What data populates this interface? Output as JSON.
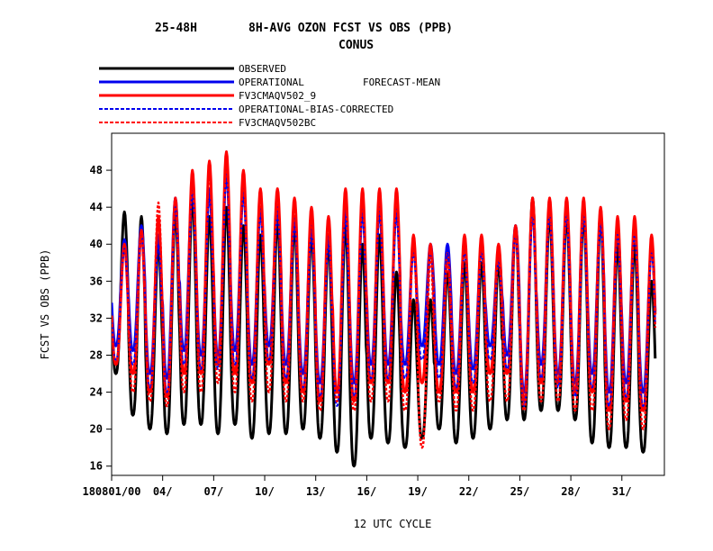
{
  "title": {
    "line1_left": "25-48H",
    "line1_right": "8H-AVG OZON FCST VS OBS (PPB)",
    "line2": "CONUS"
  },
  "legend": {
    "observed": "OBSERVED",
    "operational": "OPERATIONAL",
    "forecast_mean": "FORECAST-MEAN",
    "fv3": "FV3CMAQV502_9",
    "op_bc": "OPERATIONAL-BIAS-CORRECTED",
    "fv3_bc": "FV3CMAQV502BC"
  },
  "chart_data": {
    "type": "line",
    "xlabel": "12 UTC CYCLE",
    "ylabel": "FCST VS OBS (PPB)",
    "ylim": [
      15,
      52
    ],
    "xlim": [
      0,
      32.5
    ],
    "yticks": [
      16,
      20,
      24,
      28,
      32,
      36,
      40,
      44,
      48
    ],
    "xticks": [
      {
        "x": 0,
        "label": "180801/00"
      },
      {
        "x": 3,
        "label": "04/"
      },
      {
        "x": 6,
        "label": "07/"
      },
      {
        "x": 9,
        "label": "10/"
      },
      {
        "x": 12,
        "label": "13/"
      },
      {
        "x": 15,
        "label": "16/"
      },
      {
        "x": 18,
        "label": "19/"
      },
      {
        "x": 21,
        "label": "22/"
      },
      {
        "x": 24,
        "label": "25/"
      },
      {
        "x": 27,
        "label": "28/"
      },
      {
        "x": 30,
        "label": "31/"
      }
    ],
    "daily": {
      "x": [
        0,
        1,
        2,
        3,
        4,
        5,
        6,
        7,
        8,
        9,
        10,
        11,
        12,
        13,
        14,
        15,
        16,
        17,
        18,
        19,
        20,
        21,
        22,
        23,
        24,
        25,
        26,
        27,
        28,
        29,
        30,
        31,
        32
      ],
      "observed_max": [
        43.5,
        43,
        40,
        43.5,
        45,
        43,
        44,
        42,
        41,
        42.5,
        42,
        41,
        40,
        42,
        40,
        41,
        37,
        34,
        34,
        37,
        38,
        38,
        38,
        42,
        45,
        43,
        43,
        43,
        43,
        40,
        40,
        36,
        38
      ],
      "observed_min": [
        26,
        21.5,
        20,
        19.5,
        20.5,
        20.5,
        19.5,
        20.5,
        19,
        19.5,
        19.5,
        20,
        19,
        17.5,
        16,
        19,
        18.5,
        18,
        19,
        20,
        18.5,
        19,
        20,
        21,
        21,
        22,
        22,
        21,
        18.5,
        18,
        18,
        17.5,
        18
      ],
      "operational_max": [
        40.5,
        42,
        41,
        45,
        46.5,
        46,
        48,
        46,
        44,
        44,
        43,
        42,
        41,
        44,
        44,
        44,
        44,
        40,
        40,
        40,
        40,
        40,
        39,
        42,
        44,
        44,
        44,
        44,
        43,
        42,
        42,
        40,
        40
      ],
      "operational_min": [
        29,
        28.5,
        26,
        25.5,
        28.5,
        28,
        28,
        28.5,
        27,
        29,
        27,
        26,
        25,
        24,
        25,
        27,
        27,
        27,
        29,
        27,
        26,
        26.5,
        29,
        28,
        24,
        27,
        26,
        25,
        26,
        24,
        25,
        24,
        26
      ],
      "fv3_max": [
        40,
        41.5,
        43,
        45,
        48,
        49,
        50,
        48,
        46,
        46,
        45,
        44,
        43,
        46,
        46,
        46,
        46,
        41,
        40,
        39,
        41,
        41,
        40,
        42,
        45,
        45,
        45,
        45,
        44,
        43,
        43,
        41,
        40
      ],
      "fv3_min": [
        27,
        26,
        24,
        23.5,
        26,
        26,
        27,
        26,
        25,
        27,
        25,
        24,
        23,
        24,
        23,
        25,
        25,
        24,
        25,
        24,
        24,
        24,
        26,
        26,
        23,
        25,
        25,
        24,
        24,
        22,
        23,
        22,
        23
      ],
      "fv3_bc_max": [
        40,
        41,
        44.5,
        45,
        47,
        48,
        49,
        47,
        45,
        45,
        44,
        43,
        42,
        45,
        45,
        45,
        45,
        40,
        39,
        38,
        40,
        40,
        39,
        41,
        44,
        44,
        44,
        44,
        44,
        42,
        42,
        40,
        40
      ],
      "fv3_bc_min": [
        27,
        24,
        23,
        22.5,
        24,
        24,
        25,
        24,
        23,
        24,
        23,
        23,
        22,
        23,
        22,
        23,
        23,
        22,
        18,
        23,
        22,
        22,
        23,
        23,
        22,
        23,
        23,
        22,
        22,
        20,
        21,
        20,
        21
      ]
    },
    "series": [
      {
        "name": "OBSERVED",
        "color": "#000000",
        "dash": "solid"
      },
      {
        "name": "OPERATIONAL",
        "color": "#0000ee",
        "dash": "solid"
      },
      {
        "name": "FV3CMAQV502_9",
        "color": "#ff0000",
        "dash": "solid"
      },
      {
        "name": "OPERATIONAL-BIAS-CORRECTED",
        "color": "#0000ee",
        "dash": "dashed"
      },
      {
        "name": "FV3CMAQV502BC",
        "color": "#ff0000",
        "dash": "dashed"
      }
    ],
    "grid": false,
    "legend_position": "top-left"
  }
}
